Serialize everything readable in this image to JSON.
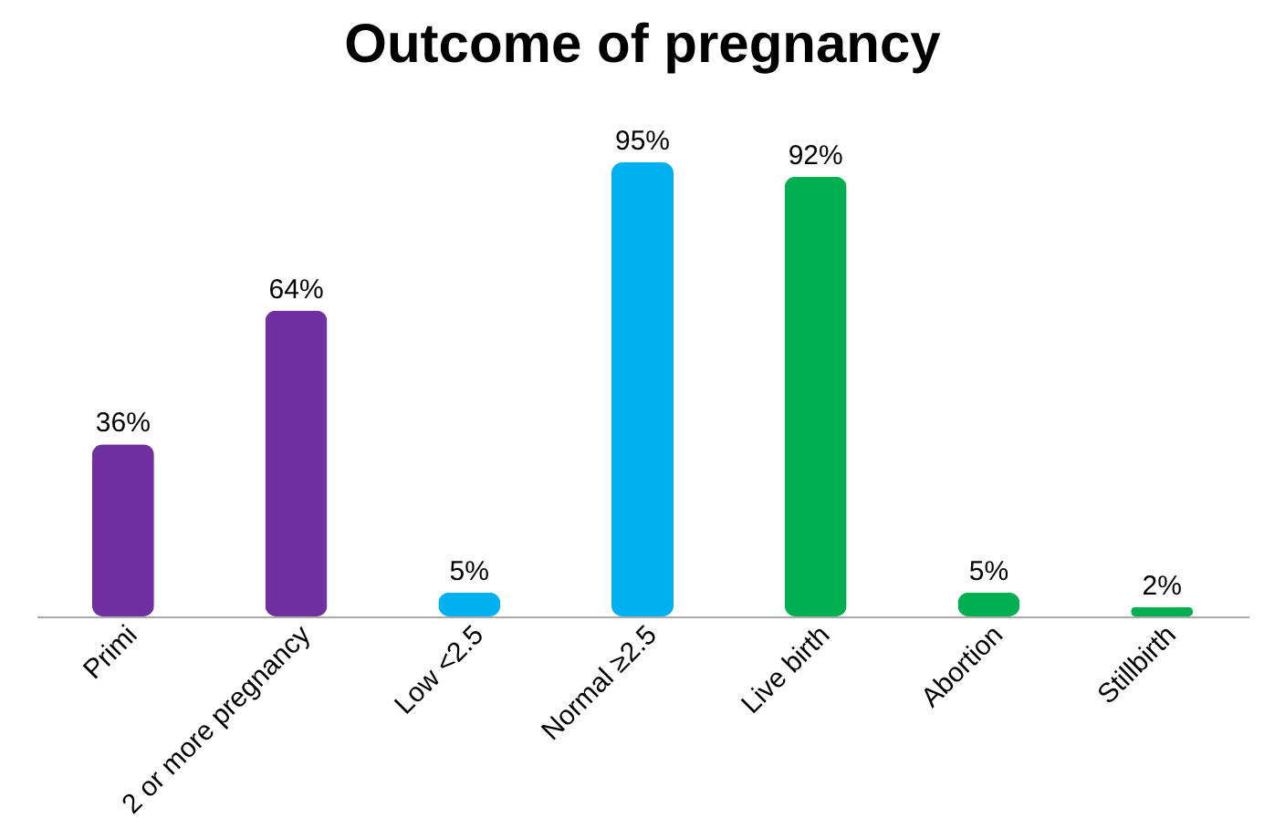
{
  "chart_data": {
    "type": "bar",
    "title": "Outcome of pregnancy",
    "categories": [
      "Primi",
      "2 or more pregnancy",
      "Low <2.5",
      "Normal ≥2.5",
      "Live birth",
      "Abortion",
      "Stillbirth"
    ],
    "values": [
      36,
      64,
      5,
      95,
      92,
      5,
      2
    ],
    "colors": [
      "#7030a0",
      "#7030a0",
      "#00b0f0",
      "#00b0f0",
      "#00b050",
      "#00b050",
      "#00b050"
    ],
    "value_labels": [
      "36%",
      "64%",
      "5%",
      "95%",
      "92%",
      "5%",
      "2%"
    ],
    "grid": false
  }
}
